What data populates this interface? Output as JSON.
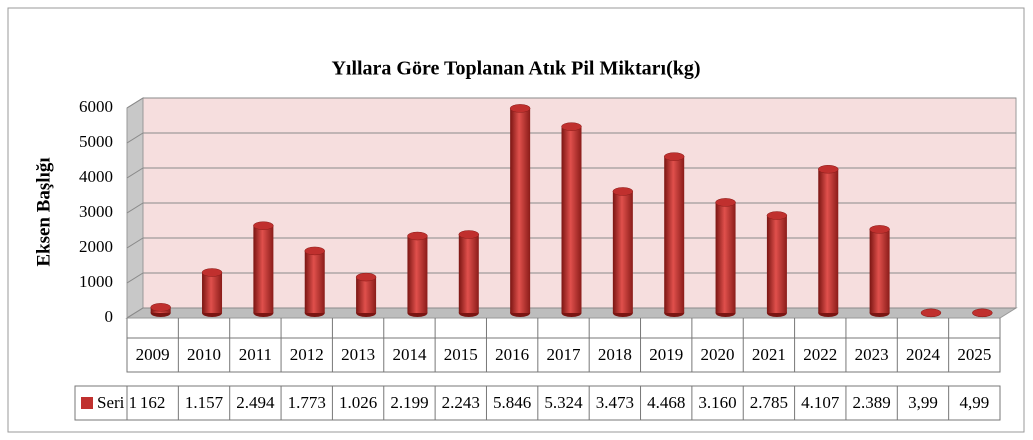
{
  "chart_data": {
    "type": "bar",
    "title": "Yıllara Göre Toplanan Atık Pil Miktarı(kg)",
    "y_axis_label": "Eksen Başlığı",
    "categories": [
      "2009",
      "2010",
      "2011",
      "2012",
      "2013",
      "2014",
      "2015",
      "2016",
      "2017",
      "2018",
      "2019",
      "2020",
      "2021",
      "2022",
      "2023",
      "2024",
      "2025"
    ],
    "series": [
      {
        "name": "Seri 1",
        "color": "#c0302e",
        "values": [
          162,
          1157,
          2494,
          1773,
          1026,
          2199,
          2243,
          5846,
          5324,
          3473,
          4468,
          3160,
          2785,
          4107,
          2389,
          3.99,
          4.99
        ],
        "value_labels": [
          "162",
          "1.157",
          "2.494",
          "1.773",
          "1.026",
          "2.199",
          "2.243",
          "5.846",
          "5.324",
          "3.473",
          "4.468",
          "3.160",
          "2.785",
          "4.107",
          "2.389",
          "3,99",
          "4,99"
        ]
      }
    ],
    "ylim": [
      0,
      6000
    ],
    "yticks": [
      0,
      1000,
      2000,
      3000,
      4000,
      5000,
      6000
    ],
    "grid": true
  }
}
